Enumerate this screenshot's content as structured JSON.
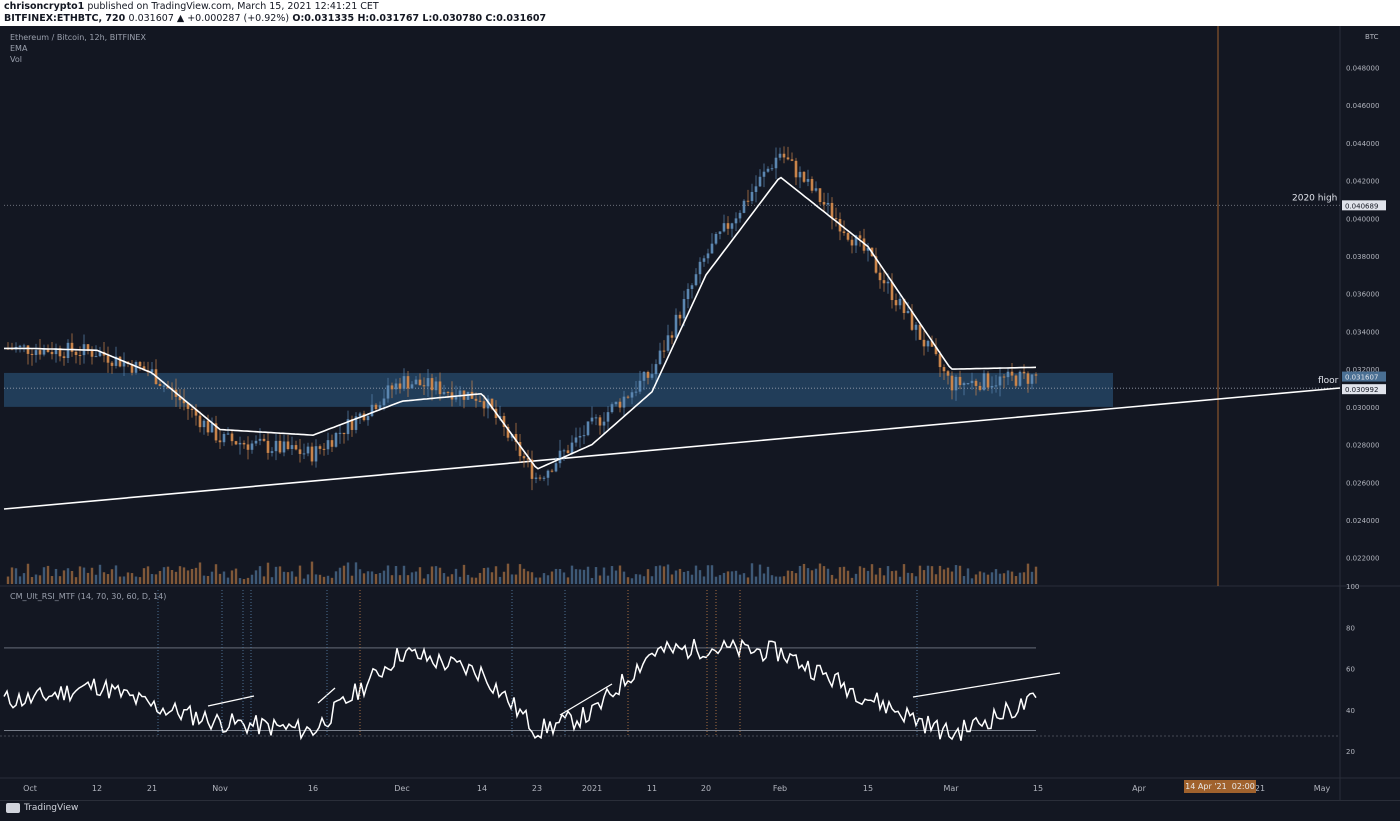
{
  "header": {
    "author": "chrisoncrypto1",
    "published_text": "published on TradingView.com, March 15, 2021 12:41:21 CET",
    "symbol_line": "BITFINEX:ETHBTC, 720",
    "change_text": "0.031607 ▲ +0.000287 (+0.92%)",
    "ohlc_text": "O:0.031335 H:0.031767 L:0.030780 C:0.031607"
  },
  "legend": {
    "title": "Ethereum / Bitcoin, 12h, BITFINEX",
    "ema": "EMA",
    "vol": "Vol",
    "indicator": "CM_Ult_RSI_MTF (14, 70, 30, 60, D, 14)"
  },
  "footer": {
    "brand": "TradingView",
    "crosshair_date": "14 Apr '21",
    "crosshair_time": "02:00"
  },
  "colors": {
    "background": "#131722",
    "candle_up": "#5b86b0",
    "candle_down": "#c9844a",
    "ema": "#ffffff",
    "zone": "#2e5c86",
    "crosshair": "#a0622d"
  },
  "annotations": {
    "high_label": "2020 high",
    "floor_label": "floor"
  },
  "chart_data": [
    {
      "type": "line",
      "title": "Ethereum / Bitcoin, 12h, BITFINEX",
      "currency": "BTC",
      "x_ticks": [
        "Oct",
        "12",
        "21",
        "Nov",
        "16",
        "Dec",
        "14",
        "23",
        "2021",
        "11",
        "20",
        "Feb",
        "15",
        "Mar",
        "15",
        "Apr",
        "21",
        "May"
      ],
      "y_ticks": [
        "0.022000",
        "0.024000",
        "0.026000",
        "0.028000",
        "0.030000",
        "0.032000",
        "0.034000",
        "0.036000",
        "0.038000",
        "0.040000",
        "0.042000",
        "0.044000",
        "0.046000",
        "0.048000"
      ],
      "ylim": [
        0.0205,
        0.0502
      ],
      "price_labels": [
        "0.040689",
        "0.031607",
        "0.030992"
      ],
      "resistance_level": 0.040689,
      "support_zone": [
        0.03,
        0.0318
      ],
      "series": [
        {
          "name": "Ethereum / Bitcoin",
          "x": [
            "Oct",
            "12",
            "21",
            "Nov",
            "16",
            "Dec",
            "14",
            "23",
            "2021",
            "11",
            "20",
            "Feb",
            "15",
            "Mar",
            "15"
          ],
          "values": [
            0.0331,
            0.0329,
            0.0318,
            0.0283,
            0.0275,
            0.0314,
            0.0305,
            0.0262,
            0.029,
            0.0318,
            0.038,
            0.0435,
            0.038,
            0.0312,
            0.0316
          ]
        },
        {
          "name": "EMA",
          "x": [
            "Oct",
            "12",
            "21",
            "Nov",
            "16",
            "Dec",
            "14",
            "23",
            "2021",
            "11",
            "20",
            "Feb",
            "15",
            "Mar",
            "15"
          ],
          "values": [
            0.0331,
            0.033,
            0.0318,
            0.0288,
            0.0285,
            0.0303,
            0.0307,
            0.0267,
            0.028,
            0.0308,
            0.037,
            0.0422,
            0.0385,
            0.032,
            0.0321
          ]
        }
      ]
    },
    {
      "type": "line",
      "title": "CM_Ult_RSI_MTF (14, 70, 30, 60, D, 14)",
      "y_ticks": [
        "20",
        "40",
        "60",
        "80",
        "100"
      ],
      "ylim": [
        7,
        100
      ],
      "bands": [
        70,
        30
      ],
      "series": [
        {
          "name": "CM_Ult_RSI_MTF",
          "x": [
            "Oct",
            "12",
            "21",
            "Nov",
            "16",
            "Dec",
            "14",
            "23",
            "2021",
            "11",
            "20",
            "Feb",
            "15",
            "Mar",
            "15"
          ],
          "values": [
            45,
            52,
            42,
            34,
            30,
            68,
            58,
            30,
            38,
            68,
            70,
            68,
            46,
            28,
            45
          ]
        }
      ]
    }
  ]
}
